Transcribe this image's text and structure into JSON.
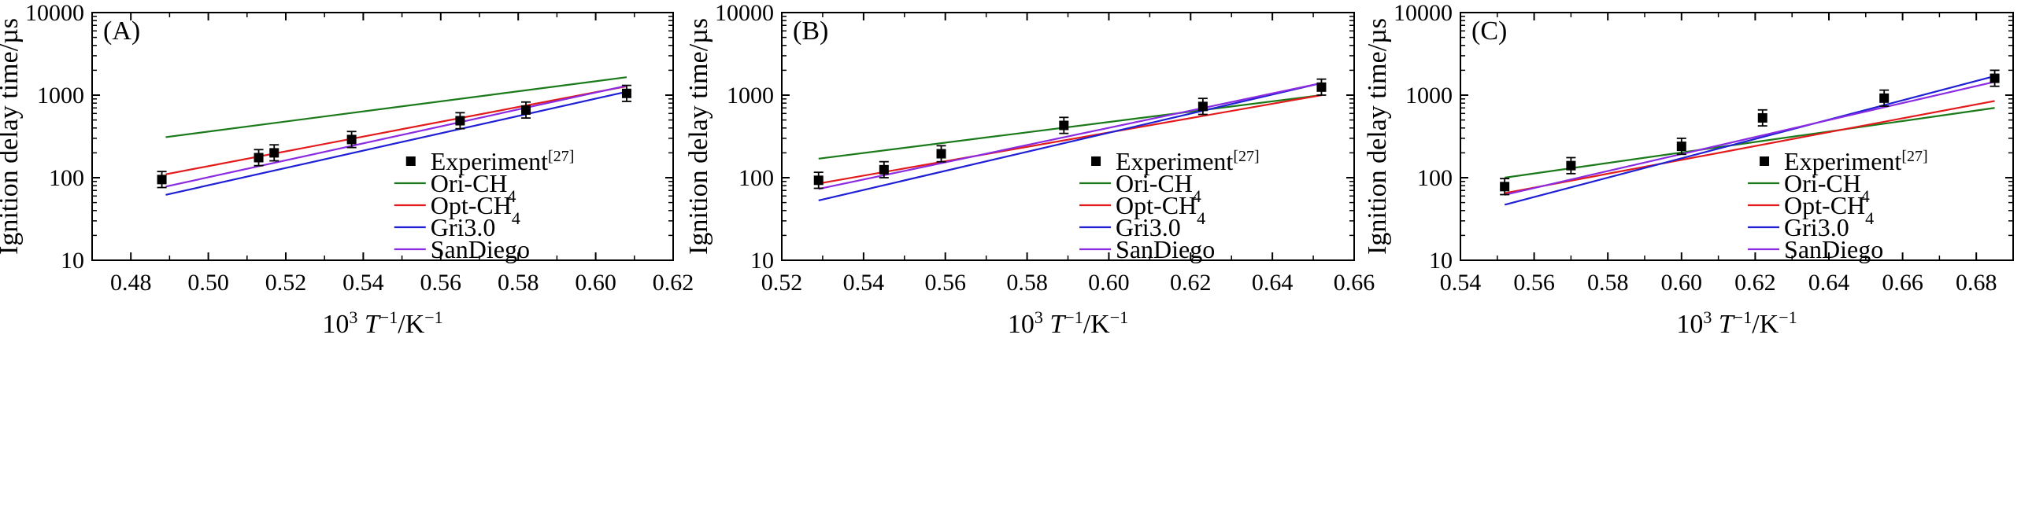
{
  "chart_data": [
    {
      "type": "line",
      "panel_label": "(A)",
      "xlabel": {
        "prefix": "10",
        "prefix_sup": "3",
        "var": "T",
        "var_sup": "−1",
        "unit": "/K",
        "unit_sup": "−1"
      },
      "ylabel": "Ignition delay time/µs",
      "yscale": "log",
      "xlim": [
        0.47,
        0.62
      ],
      "ylim": [
        10,
        10000
      ],
      "xticks": [
        "0.48",
        "0.50",
        "0.52",
        "0.54",
        "0.56",
        "0.58",
        "0.60",
        "0.62"
      ],
      "yticks": [
        "10",
        "100",
        "1000",
        "10000"
      ],
      "legend_position": "bottom-right",
      "experiment": {
        "name": "Experiment",
        "sup": "[27]",
        "color": "#000000",
        "x": [
          0.488,
          0.513,
          0.517,
          0.537,
          0.565,
          0.582,
          0.608
        ],
        "y": [
          95,
          175,
          200,
          290,
          490,
          660,
          1050
        ],
        "yerr_factor": 1.25
      },
      "series": [
        {
          "name": "Ori-CH",
          "sub": "4",
          "color": "#1a7a1a",
          "x": [
            0.489,
            0.608
          ],
          "y": [
            310,
            1650
          ]
        },
        {
          "name": "Opt-CH",
          "sub": "4",
          "color": "#e31a1c",
          "x": [
            0.489,
            0.608
          ],
          "y": [
            110,
            1280
          ]
        },
        {
          "name": "Gri3.0",
          "sub": "",
          "color": "#1f1fd6",
          "x": [
            0.489,
            0.608
          ],
          "y": [
            62,
            1100
          ]
        },
        {
          "name": "SanDiego",
          "sub": "",
          "color": "#8a2be2",
          "x": [
            0.489,
            0.608
          ],
          "y": [
            78,
            1300
          ]
        }
      ]
    },
    {
      "type": "line",
      "panel_label": "(B)",
      "xlabel": {
        "prefix": "10",
        "prefix_sup": "3",
        "var": "T",
        "var_sup": "−1",
        "unit": "/K",
        "unit_sup": "−1"
      },
      "ylabel": "Ignition delay time/µs",
      "yscale": "log",
      "xlim": [
        0.52,
        0.66
      ],
      "ylim": [
        10,
        10000
      ],
      "xticks": [
        "0.52",
        "0.54",
        "0.56",
        "0.58",
        "0.60",
        "0.62",
        "0.64",
        "0.66"
      ],
      "yticks": [
        "10",
        "100",
        "1000",
        "10000"
      ],
      "legend_position": "bottom-right",
      "experiment": {
        "name": "Experiment",
        "sup": "[27]",
        "color": "#000000",
        "x": [
          0.529,
          0.545,
          0.559,
          0.589,
          0.623,
          0.652
        ],
        "y": [
          93,
          125,
          195,
          430,
          730,
          1250
        ],
        "yerr_factor": 1.25
      },
      "series": [
        {
          "name": "Ori-CH",
          "sub": "4",
          "color": "#1a7a1a",
          "x": [
            0.529,
            0.652
          ],
          "y": [
            170,
            1000
          ]
        },
        {
          "name": "Opt-CH",
          "sub": "4",
          "color": "#e31a1c",
          "x": [
            0.529,
            0.652
          ],
          "y": [
            85,
            1000
          ]
        },
        {
          "name": "Gri3.0",
          "sub": "",
          "color": "#1f1fd6",
          "x": [
            0.529,
            0.652
          ],
          "y": [
            53,
            1400
          ]
        },
        {
          "name": "SanDiego",
          "sub": "",
          "color": "#8a2be2",
          "x": [
            0.529,
            0.652
          ],
          "y": [
            73,
            1400
          ]
        }
      ]
    },
    {
      "type": "line",
      "panel_label": "(C)",
      "xlabel": {
        "prefix": "10",
        "prefix_sup": "3",
        "var": "T",
        "var_sup": "−1",
        "unit": "/K",
        "unit_sup": "−1"
      },
      "ylabel": "Ignition delay time/µs",
      "yscale": "log",
      "xlim": [
        0.54,
        0.69
      ],
      "ylim": [
        10,
        10000
      ],
      "xticks": [
        "0.54",
        "0.56",
        "0.58",
        "0.60",
        "0.62",
        "0.64",
        "0.66",
        "0.68"
      ],
      "yticks": [
        "10",
        "100",
        "1000",
        "10000"
      ],
      "legend_position": "bottom-right",
      "experiment": {
        "name": "Experiment",
        "sup": "[27]",
        "color": "#000000",
        "x": [
          0.552,
          0.57,
          0.6,
          0.622,
          0.655,
          0.685
        ],
        "y": [
          78,
          140,
          240,
          530,
          920,
          1600
        ],
        "yerr_factor": 1.25
      },
      "series": [
        {
          "name": "Ori-CH",
          "sub": "4",
          "color": "#1a7a1a",
          "x": [
            0.552,
            0.685
          ],
          "y": [
            100,
            700
          ]
        },
        {
          "name": "Opt-CH",
          "sub": "4",
          "color": "#e31a1c",
          "x": [
            0.552,
            0.685
          ],
          "y": [
            65,
            850
          ]
        },
        {
          "name": "Gri3.0",
          "sub": "",
          "color": "#1f1fd6",
          "x": [
            0.552,
            0.685
          ],
          "y": [
            47,
            1700
          ]
        },
        {
          "name": "SanDiego",
          "sub": "",
          "color": "#8a2be2",
          "x": [
            0.552,
            0.685
          ],
          "y": [
            62,
            1450
          ]
        }
      ]
    }
  ]
}
